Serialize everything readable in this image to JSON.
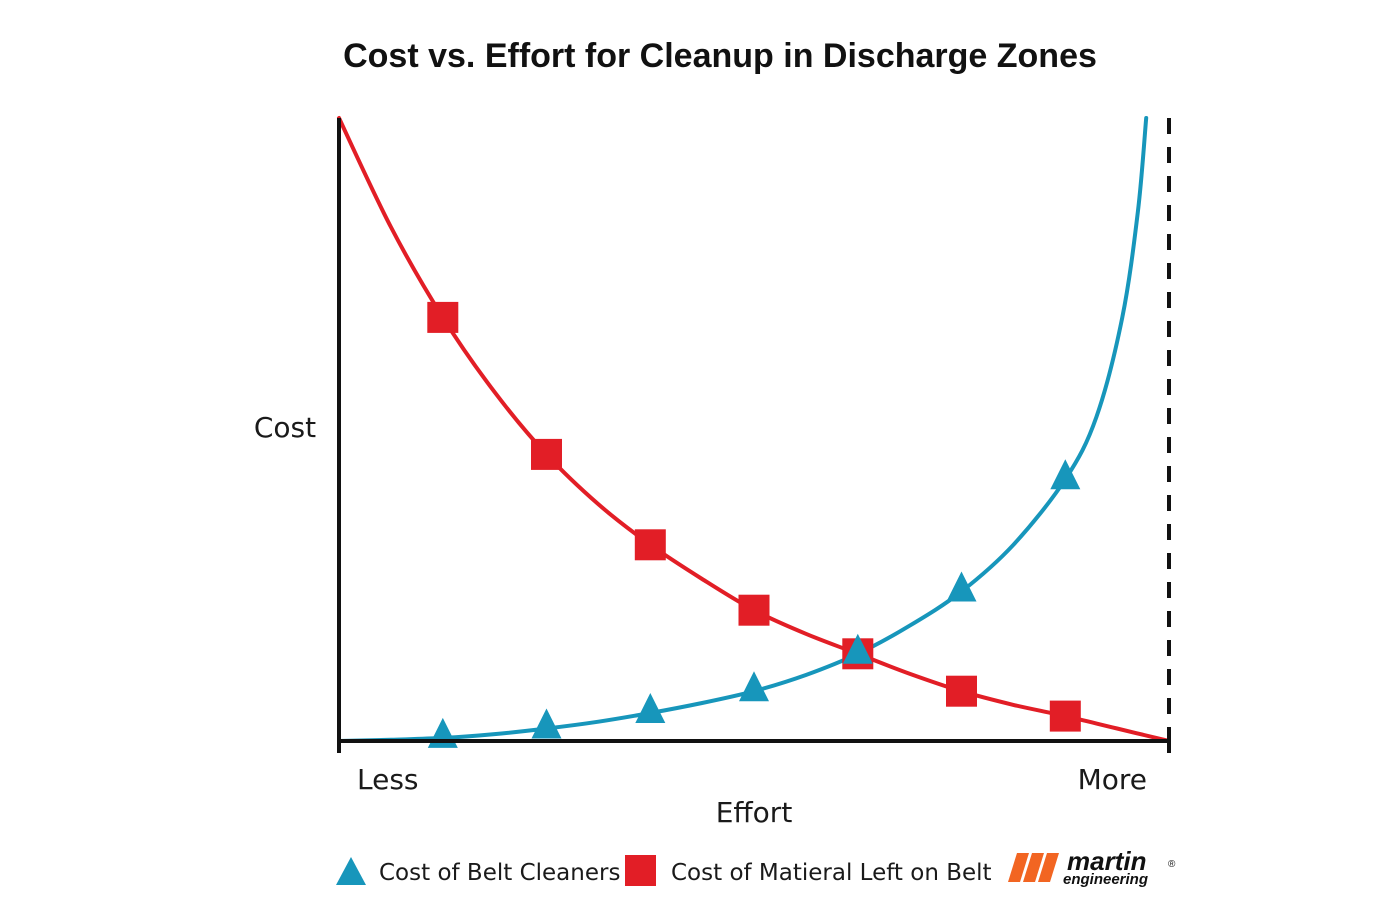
{
  "chart_data": {
    "type": "line",
    "title": "Cost vs. Effort for Cleanup in Discharge Zones",
    "xlabel": "Effort",
    "ylabel": "Cost",
    "x_tick_labels": [
      "Less",
      "More"
    ],
    "xlim": [
      0,
      8
    ],
    "ylim": [
      0,
      10
    ],
    "limit_line_x": 8,
    "series": [
      {
        "name": "Cost of Belt Cleaners",
        "marker": "triangle",
        "color": "#1796bb",
        "x": [
          1,
          2,
          3,
          4,
          5,
          6,
          7
        ],
        "values": [
          0.05,
          0.2,
          0.45,
          0.8,
          1.4,
          2.4,
          4.2
        ],
        "curve_x": [
          0,
          0.5,
          1,
          1.5,
          2,
          2.5,
          3,
          3.5,
          4,
          4.5,
          5,
          5.5,
          6,
          6.5,
          7,
          7.3,
          7.55,
          7.7,
          7.78
        ],
        "curve_y": [
          0,
          0.02,
          0.05,
          0.11,
          0.2,
          0.31,
          0.45,
          0.61,
          0.8,
          1.06,
          1.4,
          1.85,
          2.4,
          3.15,
          4.2,
          5.2,
          6.8,
          8.5,
          10
        ]
      },
      {
        "name": "Cost of Matieral Left on Belt",
        "marker": "square",
        "color": "#e21e26",
        "x": [
          1,
          2,
          3,
          4,
          5,
          6,
          7
        ],
        "values": [
          6.8,
          4.6,
          3.15,
          2.1,
          1.4,
          0.8,
          0.4
        ],
        "curve_x": [
          0,
          0.5,
          1,
          1.5,
          2,
          2.5,
          3,
          3.5,
          4,
          4.5,
          5,
          5.5,
          6,
          6.5,
          7,
          7.5,
          8
        ],
        "curve_y": [
          10,
          8.25,
          6.8,
          5.6,
          4.6,
          3.8,
          3.15,
          2.6,
          2.1,
          1.72,
          1.4,
          1.08,
          0.8,
          0.58,
          0.4,
          0.2,
          0
        ]
      }
    ],
    "legend": {
      "position": "bottom",
      "entries": [
        "Cost of Belt Cleaners",
        "Cost of Matieral Left on Belt"
      ]
    }
  },
  "logo": {
    "name": "martin",
    "tagline": "engineering",
    "mark": "®",
    "color": "#f26522"
  }
}
